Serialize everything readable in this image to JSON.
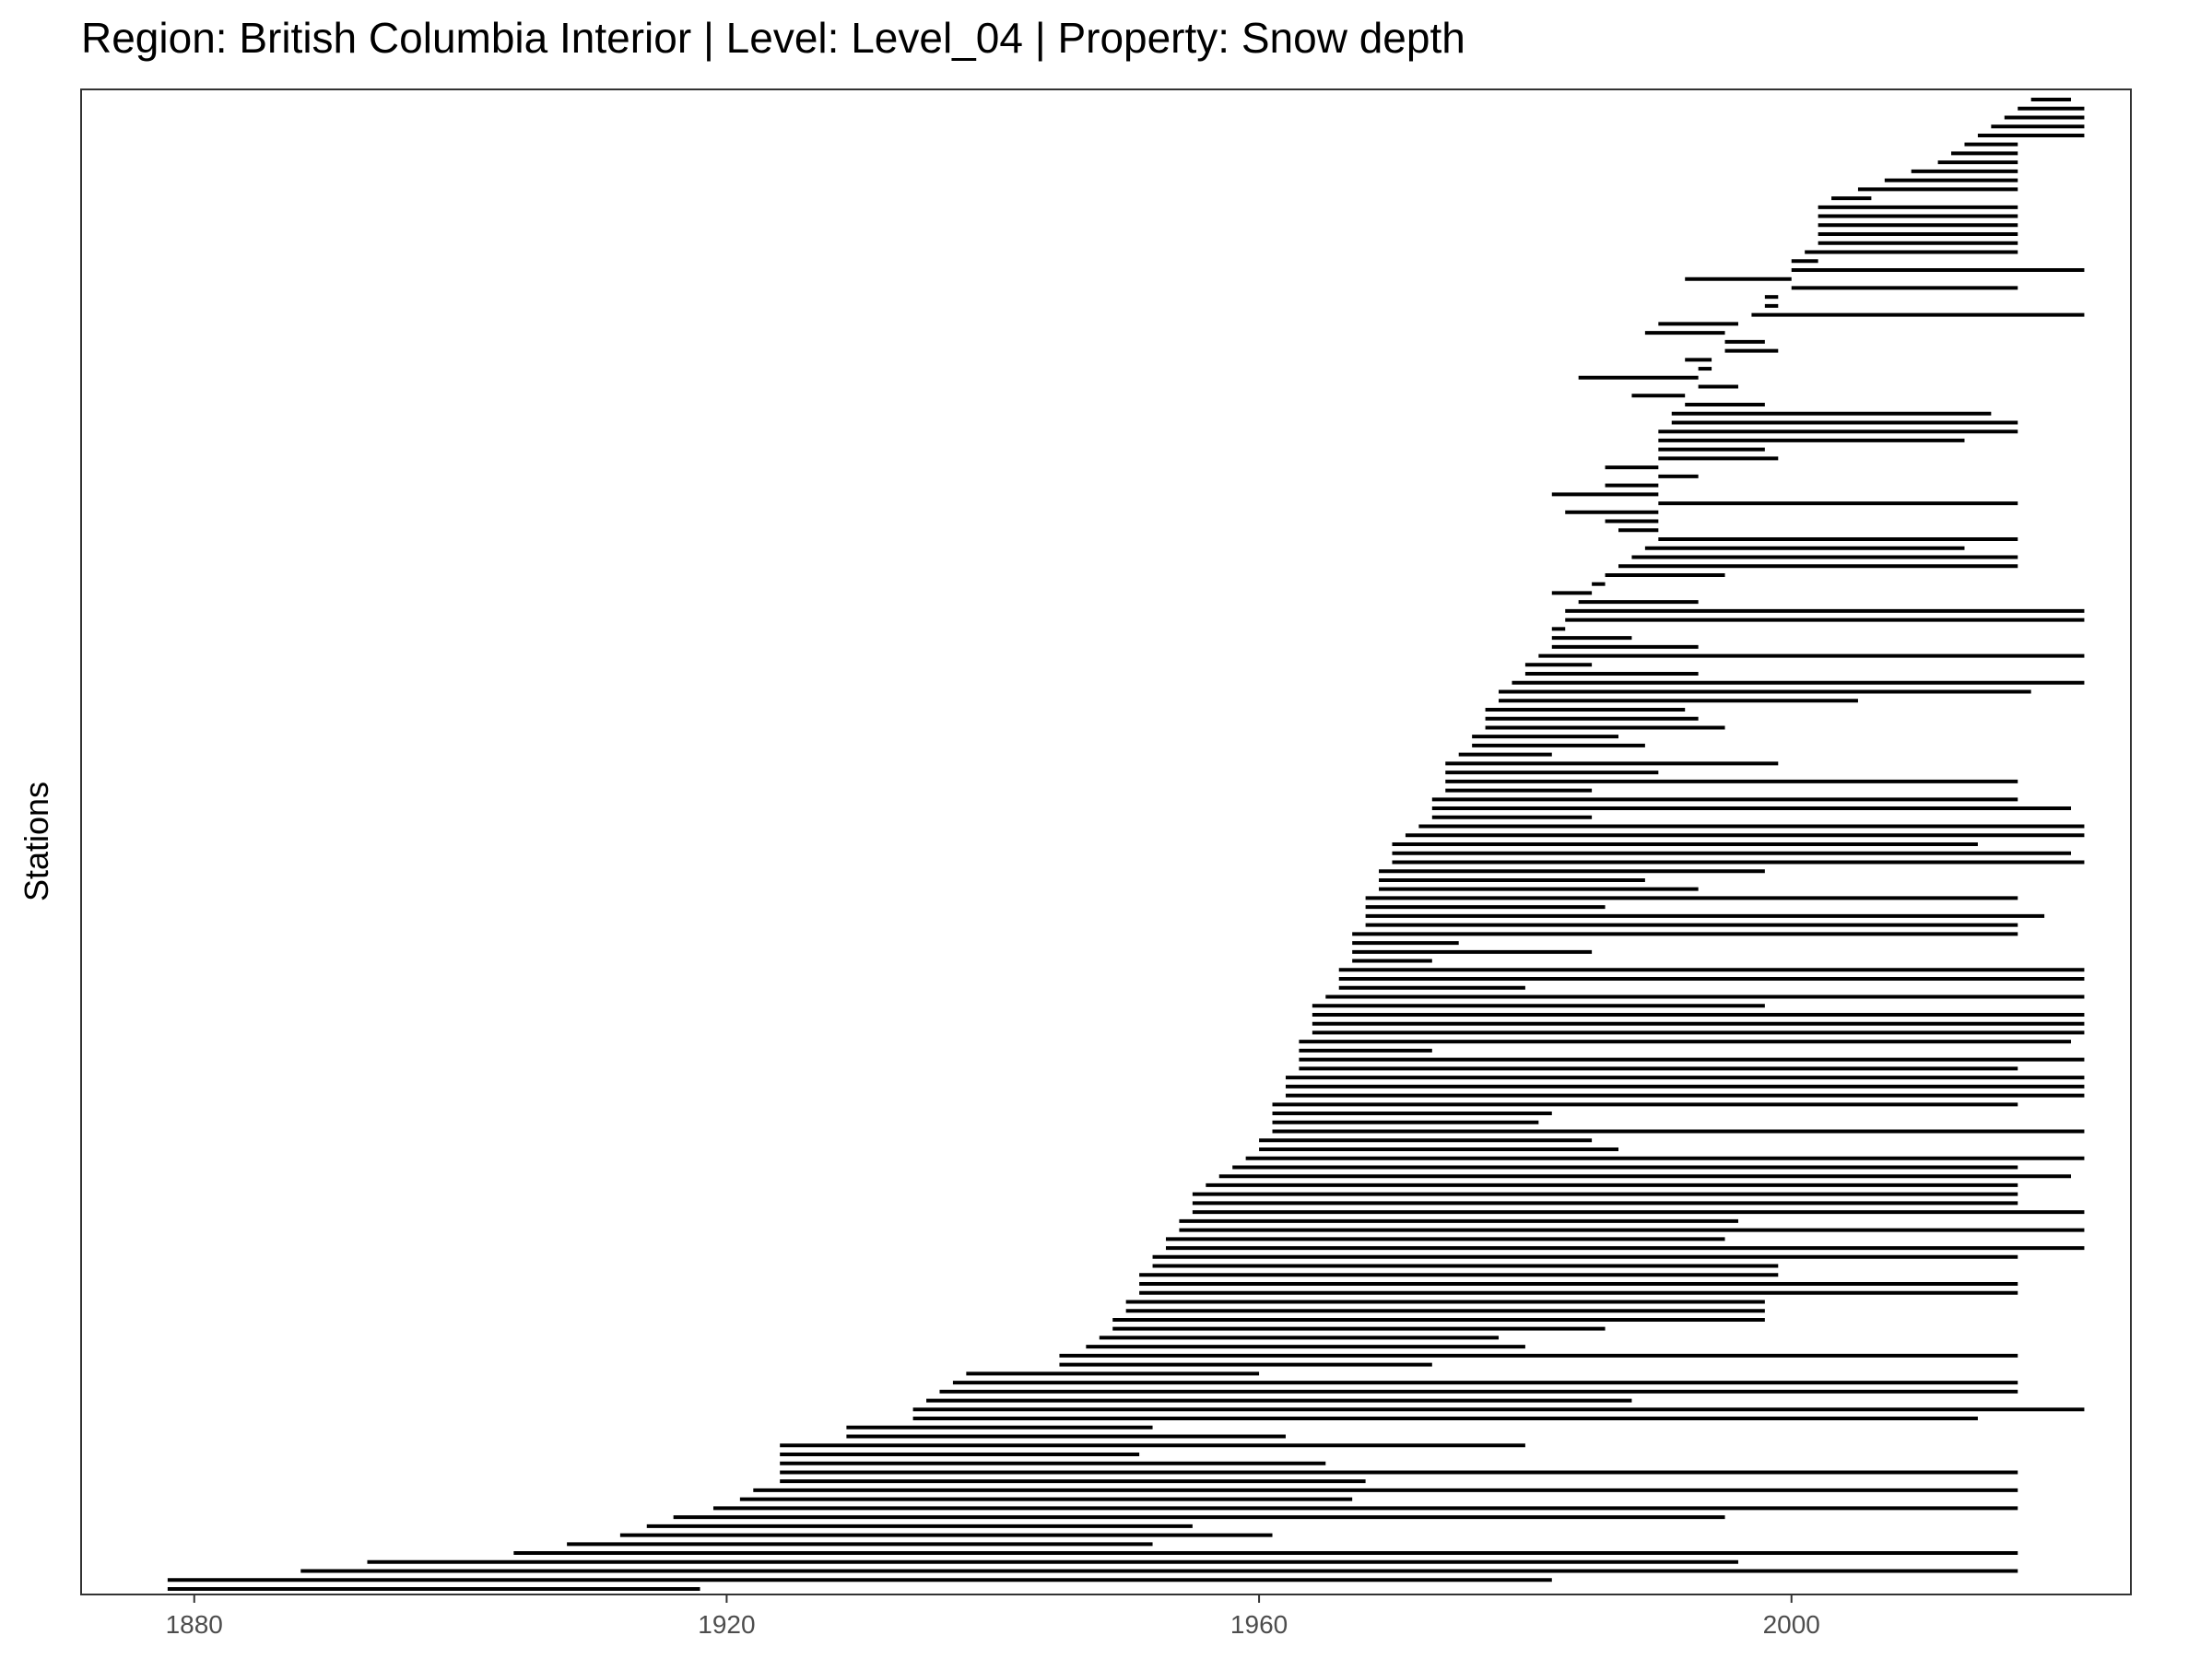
{
  "chart_data": {
    "type": "timeline",
    "title": "Region: British Columbia Interior | Level: Level_04 | Property: Snow depth",
    "xlabel": "",
    "ylabel": "Stations",
    "xlim": [
      1871.5,
      2025.5
    ],
    "x_ticks": [
      1880,
      1920,
      1960,
      2000
    ],
    "grid": false,
    "legend": "none",
    "bar_color": "#000000",
    "segments": [
      [
        1878,
        1918
      ],
      [
        1878,
        1982
      ],
      [
        1888,
        2017
      ],
      [
        1893,
        1996
      ],
      [
        1904,
        2017
      ],
      [
        1908,
        1952
      ],
      [
        1912,
        1961
      ],
      [
        1914,
        1955
      ],
      [
        1916,
        1995
      ],
      [
        1919,
        2017
      ],
      [
        1921,
        1967
      ],
      [
        1922,
        2017
      ],
      [
        1924,
        1968
      ],
      [
        1924,
        2017
      ],
      [
        1924,
        1965
      ],
      [
        1924,
        1951
      ],
      [
        1924,
        1980
      ],
      [
        1929,
        1962
      ],
      [
        1929,
        1952
      ],
      [
        1934,
        2014
      ],
      [
        1934,
        2022
      ],
      [
        1935,
        1988
      ],
      [
        1936,
        2017
      ],
      [
        1937,
        2017
      ],
      [
        1938,
        1960
      ],
      [
        1945,
        1973
      ],
      [
        1945,
        2017
      ],
      [
        1947,
        1980
      ],
      [
        1948,
        1978
      ],
      [
        1949,
        1986
      ],
      [
        1949,
        1998
      ],
      [
        1950,
        1998
      ],
      [
        1950,
        1998
      ],
      [
        1951,
        2017
      ],
      [
        1951,
        2017
      ],
      [
        1951,
        1999
      ],
      [
        1952,
        1999
      ],
      [
        1952,
        2017
      ],
      [
        1953,
        2022
      ],
      [
        1953,
        1995
      ],
      [
        1954,
        2022
      ],
      [
        1954,
        1996
      ],
      [
        1955,
        2022
      ],
      [
        1955,
        2017
      ],
      [
        1955,
        2017
      ],
      [
        1956,
        2017
      ],
      [
        1957,
        2021
      ],
      [
        1958,
        2017
      ],
      [
        1959,
        2022
      ],
      [
        1960,
        1987
      ],
      [
        1960,
        1985
      ],
      [
        1961,
        2022
      ],
      [
        1961,
        1981
      ],
      [
        1961,
        1982
      ],
      [
        1961,
        2017
      ],
      [
        1962,
        2022
      ],
      [
        1962,
        2022
      ],
      [
        1962,
        2022
      ],
      [
        1963,
        2017
      ],
      [
        1963,
        2022
      ],
      [
        1963,
        1973
      ],
      [
        1963,
        2021
      ],
      [
        1964,
        2022
      ],
      [
        1964,
        2022
      ],
      [
        1964,
        2022
      ],
      [
        1964,
        1998
      ],
      [
        1965,
        2022
      ],
      [
        1966,
        1980
      ],
      [
        1966,
        2022
      ],
      [
        1966,
        2022
      ],
      [
        1967,
        1973
      ],
      [
        1967,
        1985
      ],
      [
        1967,
        1975
      ],
      [
        1967,
        2017
      ],
      [
        1968,
        2017
      ],
      [
        1968,
        2019
      ],
      [
        1968,
        1986
      ],
      [
        1968,
        2017
      ],
      [
        1969,
        1993
      ],
      [
        1969,
        1989
      ],
      [
        1969,
        1998
      ],
      [
        1970,
        2022
      ],
      [
        1970,
        2021
      ],
      [
        1970,
        2014
      ],
      [
        1971,
        2022
      ],
      [
        1972,
        2022
      ],
      [
        1973,
        1985
      ],
      [
        1973,
        2021
      ],
      [
        1973,
        2017
      ],
      [
        1974,
        1985
      ],
      [
        1974,
        2017
      ],
      [
        1974,
        1990
      ],
      [
        1974,
        1999
      ],
      [
        1975,
        1982
      ],
      [
        1976,
        1989
      ],
      [
        1976,
        1987
      ],
      [
        1977,
        1995
      ],
      [
        1977,
        1993
      ],
      [
        1977,
        1992
      ],
      [
        1978,
        2005
      ],
      [
        1978,
        2018
      ],
      [
        1979,
        2022
      ],
      [
        1980,
        1993
      ],
      [
        1980,
        1985
      ],
      [
        1981,
        2022
      ],
      [
        1982,
        1993
      ],
      [
        1982,
        1988
      ],
      [
        1982,
        1983
      ],
      [
        1983,
        2022
      ],
      [
        1983,
        2022
      ],
      [
        1984,
        1993
      ],
      [
        1985,
        1982
      ],
      [
        1986,
        1985
      ],
      [
        1986,
        1995
      ],
      [
        1987,
        2017
      ],
      [
        1988,
        2017
      ],
      [
        1989,
        2013
      ],
      [
        1990,
        2017
      ],
      [
        1990,
        1987
      ],
      [
        1990,
        1986
      ],
      [
        1990,
        1983
      ],
      [
        1990,
        2017
      ],
      [
        1990,
        1982
      ],
      [
        1990,
        1986
      ],
      [
        1990,
        1993
      ],
      [
        1990,
        1986
      ],
      [
        1990,
        1999
      ],
      [
        1990,
        1998
      ],
      [
        1990,
        2013
      ],
      [
        1990,
        2017
      ],
      [
        1991,
        2017
      ],
      [
        1991,
        2015
      ],
      [
        1992,
        1998
      ],
      [
        1992,
        1988
      ],
      [
        1993,
        1996
      ],
      [
        1993,
        1984
      ],
      [
        1994,
        1993
      ],
      [
        1994,
        1992
      ],
      [
        1995,
        1999
      ],
      [
        1995,
        1998
      ],
      [
        1995,
        1989
      ],
      [
        1996,
        1990
      ],
      [
        1997,
        2022
      ],
      [
        1998,
        1999
      ],
      [
        1998,
        1999
      ],
      [
        2000,
        2017
      ],
      [
        2000,
        1992
      ],
      [
        2000,
        2022
      ],
      [
        2000,
        2002
      ],
      [
        2001,
        2017
      ],
      [
        2002,
        2017
      ],
      [
        2002,
        2017
      ],
      [
        2002,
        2017
      ],
      [
        2002,
        2017
      ],
      [
        2002,
        2017
      ],
      [
        2003,
        2006
      ],
      [
        2005,
        2017
      ],
      [
        2007,
        2017
      ],
      [
        2009,
        2017
      ],
      [
        2011,
        2017
      ],
      [
        2012,
        2017
      ],
      [
        2013,
        2017
      ],
      [
        2014,
        2022
      ],
      [
        2015,
        2022
      ],
      [
        2016,
        2022
      ],
      [
        2017,
        2022
      ],
      [
        2018,
        2021
      ]
    ]
  }
}
